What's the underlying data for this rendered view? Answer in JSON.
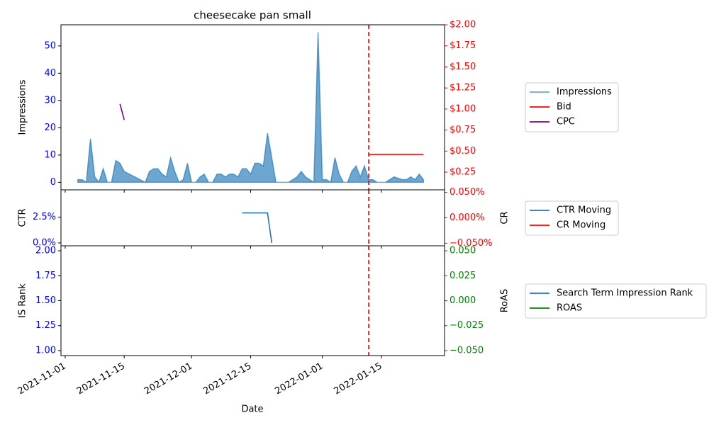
{
  "chart_data": [
    {
      "type": "line",
      "title": "cheesecake pan small",
      "ylabel": "Impressions",
      "ylim": [
        -2.75,
        57.75
      ],
      "yticks": [
        0,
        10,
        20,
        30,
        40,
        50
      ],
      "tick_color": "blue",
      "y2lim": [
        0.04,
        2.0
      ],
      "y2tick_color": "red",
      "y2ticks": [
        {
          "value": 0.25,
          "label": "$0.25"
        },
        {
          "value": 0.5,
          "label": "$0.50"
        },
        {
          "value": 0.75,
          "label": "$0.75"
        },
        {
          "value": 1.0,
          "label": "$1.00"
        },
        {
          "value": 1.25,
          "label": "$1.25"
        },
        {
          "value": 1.5,
          "label": "$1.50"
        },
        {
          "value": 1.75,
          "label": "$1.75"
        },
        {
          "value": 2.0,
          "label": "$2.00"
        }
      ],
      "vline": "2022-01-12",
      "legend": "outside right",
      "series": [
        {
          "name": "Impressions",
          "color": "#1f77b4",
          "type": "area",
          "x": [
            "2021-11-04",
            "2021-11-05",
            "2021-11-06",
            "2021-11-07",
            "2021-11-08",
            "2021-11-09",
            "2021-11-10",
            "2021-11-11",
            "2021-11-12",
            "2021-11-13",
            "2021-11-14",
            "2021-11-15",
            "2021-11-20",
            "2021-11-21",
            "2021-11-22",
            "2021-11-23",
            "2021-11-24",
            "2021-11-25",
            "2021-11-26",
            "2021-11-27",
            "2021-11-28",
            "2021-11-29",
            "2021-11-30",
            "2021-12-01",
            "2021-12-02",
            "2021-12-03",
            "2021-12-04",
            "2021-12-05",
            "2021-12-06",
            "2021-12-07",
            "2021-12-08",
            "2021-12-09",
            "2021-12-10",
            "2021-12-11",
            "2021-12-12",
            "2021-12-13",
            "2021-12-14",
            "2021-12-15",
            "2021-12-16",
            "2021-12-17",
            "2021-12-18",
            "2021-12-19",
            "2021-12-20",
            "2021-12-21",
            "2021-12-24",
            "2021-12-25",
            "2021-12-26",
            "2021-12-27",
            "2021-12-28",
            "2021-12-30",
            "2021-12-31",
            "2022-01-01",
            "2022-01-02",
            "2022-01-03",
            "2022-01-04",
            "2022-01-05",
            "2022-01-06",
            "2022-01-07",
            "2022-01-08",
            "2022-01-09",
            "2022-01-10",
            "2022-01-11",
            "2022-01-12",
            "2022-01-13",
            "2022-01-14",
            "2022-01-16",
            "2022-01-18",
            "2022-01-20",
            "2022-01-21",
            "2022-01-22",
            "2022-01-23",
            "2022-01-24",
            "2022-01-25"
          ],
          "values": [
            1,
            1,
            0,
            16,
            2,
            0,
            5,
            0,
            0,
            8,
            7,
            4,
            0,
            4,
            5,
            5,
            3,
            2,
            9,
            4,
            0,
            1,
            7,
            0,
            0,
            2,
            3,
            0,
            0,
            3,
            3,
            2,
            3,
            3,
            2,
            5,
            5,
            3,
            7,
            7,
            6,
            18,
            9,
            0,
            0,
            1,
            2,
            4,
            2,
            0,
            55,
            1,
            1,
            0,
            9,
            3,
            0,
            0,
            4,
            6,
            2,
            6,
            1,
            1,
            0,
            0,
            2,
            1,
            1,
            2,
            1,
            3,
            1
          ]
        },
        {
          "name": "Bid",
          "color": "red",
          "axis": "y2",
          "x": [
            "2022-01-12",
            "2022-01-25"
          ],
          "values": [
            0.46,
            0.46
          ]
        },
        {
          "name": "CPC",
          "color": "purple",
          "axis": "y2",
          "x": [
            "2021-11-14",
            "2021-11-15"
          ],
          "values": [
            1.06,
            0.87
          ]
        }
      ]
    },
    {
      "type": "line",
      "ylabel": "CTR",
      "y2label": "CR",
      "ylim": [
        -0.28,
        5.14
      ],
      "yticks": [
        {
          "value": 0,
          "label": "0.0%"
        },
        {
          "value": 2.5,
          "label": "2.5%"
        }
      ],
      "tick_color": "blue",
      "y2lim": [
        -0.055,
        0.055
      ],
      "y2tick_color": "red",
      "y2ticks": [
        {
          "value": -0.05,
          "label": "−0.050%"
        },
        {
          "value": 0,
          "label": "0.000%"
        },
        {
          "value": 0.05,
          "label": "0.050%"
        }
      ],
      "vline": "2022-01-12",
      "legend": "outside right",
      "series": [
        {
          "name": "CTR Moving",
          "color": "#1f77b4",
          "x": [
            "2021-12-13",
            "2021-12-14",
            "2021-12-15",
            "2021-12-16",
            "2021-12-17",
            "2021-12-18",
            "2021-12-19",
            "2021-12-20"
          ],
          "values": [
            2.9,
            2.9,
            2.9,
            2.9,
            2.9,
            2.9,
            2.9,
            0
          ]
        },
        {
          "name": "CR Moving",
          "color": "red",
          "axis": "y2",
          "x": [],
          "values": []
        }
      ]
    },
    {
      "type": "line",
      "ylabel": "IS Rank",
      "y2label": "RoAS",
      "xlabel": "Date",
      "ylim": [
        0.95,
        2.05
      ],
      "yticks": [
        {
          "value": 1,
          "label": "1.00"
        },
        {
          "value": 1.25,
          "label": "1.25"
        },
        {
          "value": 1.5,
          "label": "1.50"
        },
        {
          "value": 1.75,
          "label": "1.75"
        },
        {
          "value": 2,
          "label": "2.00"
        }
      ],
      "tick_color": "blue",
      "y2lim": [
        -0.055,
        0.055
      ],
      "y2tick_color": "green",
      "y2ticks": [
        {
          "value": -0.05,
          "label": "−0.050"
        },
        {
          "value": -0.025,
          "label": "−0.025"
        },
        {
          "value": 0,
          "label": "0.000"
        },
        {
          "value": 0.025,
          "label": "0.025"
        },
        {
          "value": 0.05,
          "label": "0.050"
        }
      ],
      "xlim": [
        "2021-10-31",
        "2022-01-30"
      ],
      "xticks": [
        "2021-11-01",
        "2021-11-15",
        "2021-12-01",
        "2021-12-15",
        "2022-01-01",
        "2022-01-15"
      ],
      "vline": "2022-01-12",
      "legend": "outside right",
      "series": [
        {
          "name": "Search Term Impression Rank",
          "color": "#1f77b4",
          "x": [],
          "values": []
        },
        {
          "name": "ROAS",
          "color": "green",
          "axis": "y2",
          "x": [],
          "values": []
        }
      ]
    }
  ]
}
